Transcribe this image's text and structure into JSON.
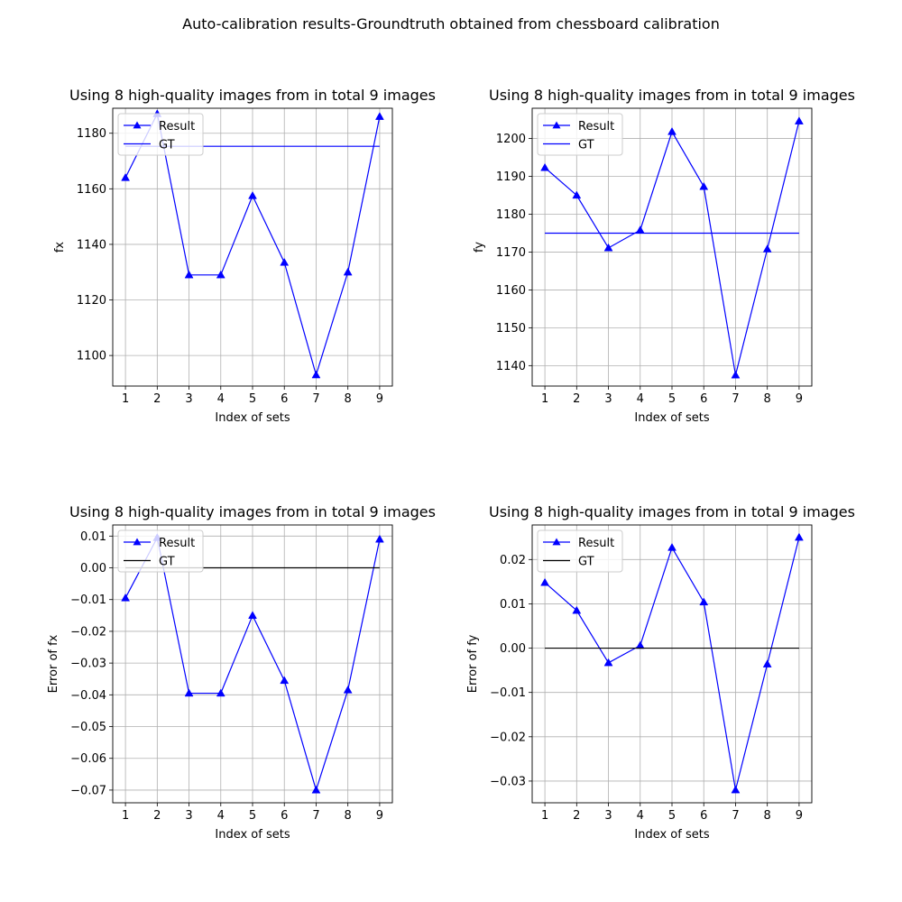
{
  "suptitle": "Auto-calibration results-Groundtruth obtained from chessboard calibration",
  "chart_data": [
    {
      "type": "line",
      "title": "Using 8 high-quality images from in total 9 images",
      "xlabel": "Index of sets",
      "ylabel": "fx",
      "x": [
        1,
        2,
        3,
        4,
        5,
        6,
        7,
        8,
        9
      ],
      "xlim": [
        0.6,
        9.4
      ],
      "ylim": [
        1089,
        1189
      ],
      "yticks": [
        1100,
        1120,
        1140,
        1160,
        1180
      ],
      "grid": true,
      "legend_position": "upper-left",
      "series": [
        {
          "name": "Result",
          "values": [
            1164,
            1187,
            1129,
            1129,
            1157.5,
            1133.5,
            1093,
            1130,
            1186
          ],
          "color": "#0000ff",
          "marker": "triangle"
        },
        {
          "name": "GT",
          "values": [
            1175.3,
            1175.3,
            1175.3,
            1175.3,
            1175.3,
            1175.3,
            1175.3,
            1175.3,
            1175.3
          ],
          "color": "#0000ff",
          "marker": "none"
        }
      ]
    },
    {
      "type": "line",
      "title": "Using 8 high-quality images from in total 9 images",
      "xlabel": "Index of sets",
      "ylabel": "fy",
      "x": [
        1,
        2,
        3,
        4,
        5,
        6,
        7,
        8,
        9
      ],
      "xlim": [
        0.6,
        9.4
      ],
      "ylim": [
        1134.6,
        1208
      ],
      "yticks": [
        1140,
        1150,
        1160,
        1170,
        1180,
        1190,
        1200
      ],
      "grid": true,
      "legend_position": "upper-left",
      "series": [
        {
          "name": "Result",
          "values": [
            1192.3,
            1185,
            1171.1,
            1175.8,
            1201.8,
            1187.3,
            1137.5,
            1170.8,
            1204.6
          ],
          "color": "#0000ff",
          "marker": "triangle"
        },
        {
          "name": "GT",
          "values": [
            1175,
            1175,
            1175,
            1175,
            1175,
            1175,
            1175,
            1175,
            1175
          ],
          "color": "#0000ff",
          "marker": "none"
        }
      ]
    },
    {
      "type": "line",
      "title": "Using 8 high-quality images from in total 9 images",
      "xlabel": "Index of sets",
      "ylabel": "Error of fx",
      "x": [
        1,
        2,
        3,
        4,
        5,
        6,
        7,
        8,
        9
      ],
      "xlim": [
        0.6,
        9.4
      ],
      "ylim": [
        -0.074,
        0.0135
      ],
      "yticks": [
        -0.07,
        -0.06,
        -0.05,
        -0.04,
        -0.03,
        -0.02,
        -0.01,
        0.0,
        0.01
      ],
      "ytick_labels": [
        "−0.07",
        "−0.06",
        "−0.05",
        "−0.04",
        "−0.03",
        "−0.02",
        "−0.01",
        "0.00",
        "0.01"
      ],
      "grid": true,
      "legend_position": "upper-left",
      "series": [
        {
          "name": "Result",
          "values": [
            -0.0095,
            0.0095,
            -0.0395,
            -0.0395,
            -0.015,
            -0.0355,
            -0.07,
            -0.0385,
            0.009
          ],
          "color": "#0000ff",
          "marker": "triangle"
        },
        {
          "name": "GT",
          "values": [
            0,
            0,
            0,
            0,
            0,
            0,
            0,
            0,
            0
          ],
          "color": "#000000",
          "marker": "none"
        }
      ]
    },
    {
      "type": "line",
      "title": "Using 8 high-quality images from in total 9 images",
      "xlabel": "Index of sets",
      "ylabel": "Error of fy",
      "x": [
        1,
        2,
        3,
        4,
        5,
        6,
        7,
        8,
        9
      ],
      "xlim": [
        0.6,
        9.4
      ],
      "ylim": [
        -0.0349,
        0.0278
      ],
      "yticks": [
        -0.03,
        -0.02,
        -0.01,
        0.0,
        0.01,
        0.02
      ],
      "ytick_labels": [
        "−0.03",
        "−0.02",
        "−0.01",
        "0.00",
        "0.01",
        "0.02"
      ],
      "grid": true,
      "legend_position": "upper-left",
      "series": [
        {
          "name": "Result",
          "values": [
            0.0148,
            0.0085,
            -0.0033,
            0.0006,
            0.0227,
            0.0104,
            -0.032,
            -0.0036,
            0.025
          ],
          "color": "#0000ff",
          "marker": "triangle"
        },
        {
          "name": "GT",
          "values": [
            0,
            0,
            0,
            0,
            0,
            0,
            0,
            0,
            0
          ],
          "color": "#000000",
          "marker": "none"
        }
      ]
    }
  ]
}
